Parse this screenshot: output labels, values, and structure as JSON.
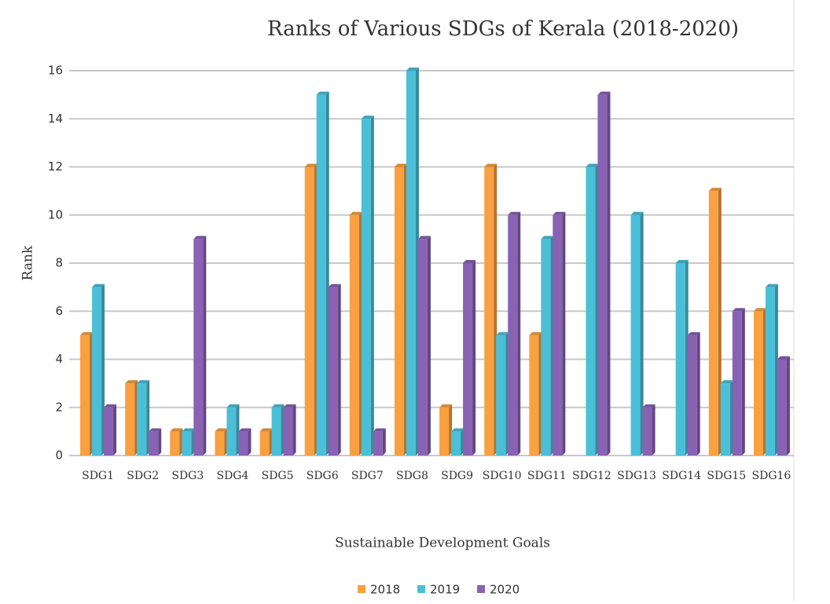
{
  "chart_data": {
    "type": "bar",
    "title": "Ranks of Various SDGs of Kerala (2018-2020)",
    "xlabel": "Sustainable Development Goals",
    "ylabel": "Rank",
    "categories": [
      "SDG1",
      "SDG2",
      "SDG3",
      "SDG4",
      "SDG5",
      "SDG6",
      "SDG7",
      "SDG8",
      "SDG9",
      "SDG10",
      "SDG11",
      "SDG12",
      "SDG13",
      "SDG14",
      "SDG15",
      "SDG16"
    ],
    "series": [
      {
        "name": "2018",
        "color": "#f9a040",
        "values": [
          5,
          3,
          1,
          1,
          1,
          12,
          10,
          12,
          2,
          12,
          5,
          null,
          null,
          null,
          11,
          6
        ]
      },
      {
        "name": "2019",
        "color": "#4bbfd8",
        "values": [
          7,
          3,
          1,
          2,
          2,
          15,
          14,
          16,
          1,
          5,
          9,
          12,
          10,
          8,
          3,
          7
        ]
      },
      {
        "name": "2020",
        "color": "#8a62b4",
        "values": [
          2,
          1,
          9,
          1,
          2,
          7,
          1,
          9,
          8,
          10,
          10,
          15,
          2,
          5,
          6,
          4
        ]
      }
    ],
    "ylim": [
      0,
      16
    ],
    "yticks": [
      0,
      2,
      4,
      6,
      8,
      10,
      12,
      14,
      16
    ],
    "grid": true,
    "legend": "bottom"
  }
}
